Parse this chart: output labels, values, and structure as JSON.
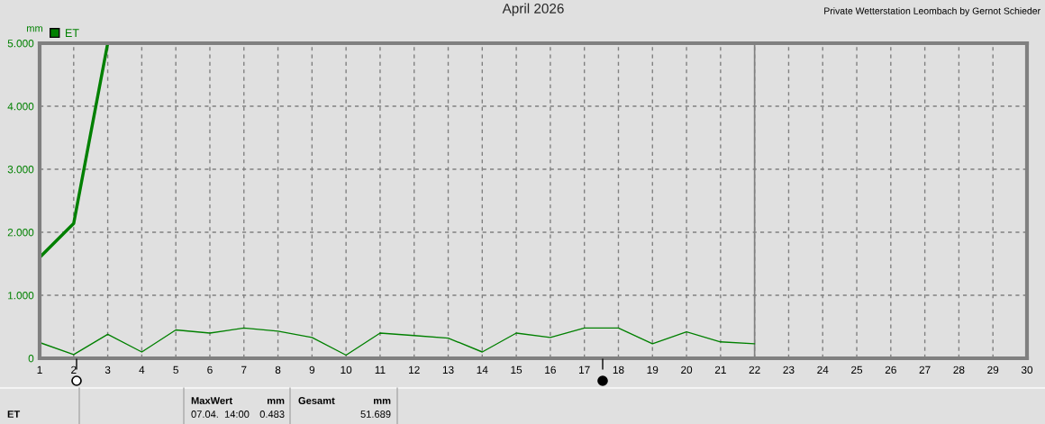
{
  "chart_data": {
    "type": "line",
    "title": "April 2026",
    "ylabel": "mm",
    "series": [
      {
        "name": "ET",
        "color": "#008000",
        "x": [
          1,
          2,
          3,
          4,
          5,
          6,
          7,
          8,
          9,
          10,
          11,
          12,
          13,
          14,
          15,
          16,
          17,
          18,
          19,
          20,
          21,
          22
        ],
        "values": [
          0.25,
          0.06,
          0.38,
          0.1,
          0.45,
          0.4,
          0.48,
          0.43,
          0.33,
          0.05,
          0.4,
          0.36,
          0.32,
          0.1,
          0.4,
          0.33,
          0.48,
          0.48,
          0.23,
          0.42,
          0.26,
          0.23
        ]
      },
      {
        "color": "#008000",
        "x": [
          1,
          2,
          3
        ],
        "values": [
          1.6,
          2.14,
          5.0
        ]
      }
    ],
    "xlim": [
      1,
      30
    ],
    "xticks": [
      1,
      2,
      3,
      4,
      5,
      6,
      7,
      8,
      9,
      10,
      11,
      12,
      13,
      14,
      15,
      16,
      17,
      18,
      19,
      20,
      21,
      22,
      23,
      24,
      25,
      26,
      27,
      28,
      29,
      30
    ],
    "ylim": [
      0,
      5
    ],
    "yticks": [
      0,
      {
        "value": 1,
        "label": "1.000"
      },
      {
        "value": 2,
        "label": "2.000"
      },
      {
        "value": 3,
        "label": "3.000"
      },
      {
        "value": 4,
        "label": "4.000"
      },
      {
        "value": 5,
        "label": "5.000"
      }
    ],
    "grid": true,
    "legend": "top left",
    "ref_lines": [
      {
        "axis": "x",
        "value": 22,
        "color": "#808080"
      }
    ],
    "annotations": [
      "Private Wetterstation Leombach by Gernot Schieder",
      "ET",
      "MaxWert",
      "mm",
      "07.04.  14:00",
      "0.483",
      "Gesamt",
      "mm",
      "51.689"
    ]
  }
}
